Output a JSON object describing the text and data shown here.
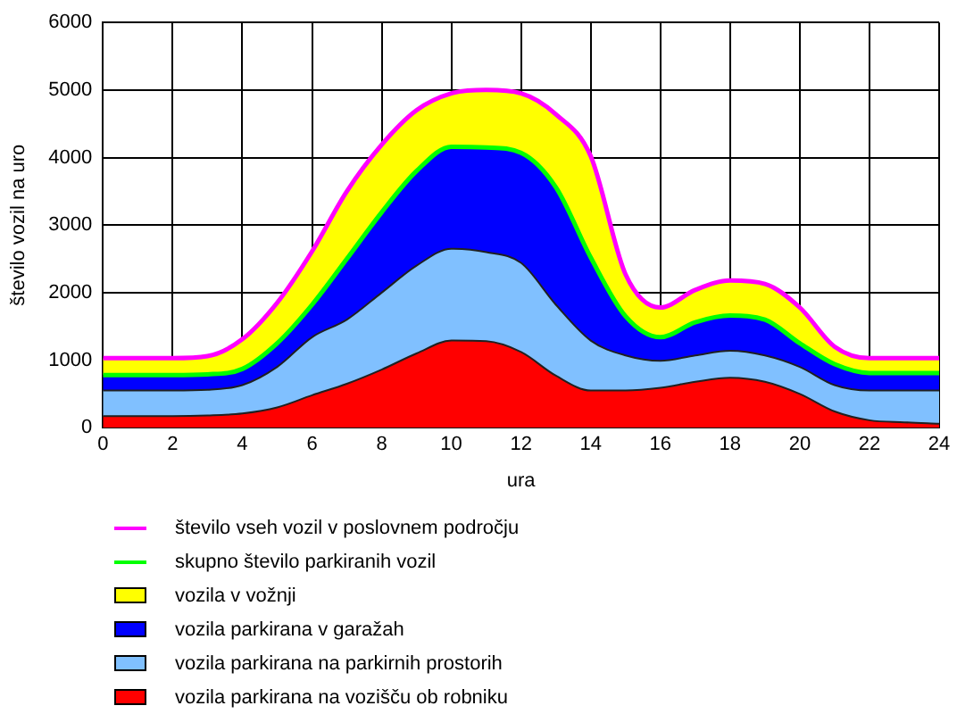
{
  "chart_data": {
    "type": "area",
    "stacked": true,
    "xlabel": "ura",
    "ylabel": "število vozil na uro",
    "x": [
      0,
      1,
      2,
      3,
      4,
      5,
      6,
      7,
      8,
      9,
      10,
      11,
      12,
      13,
      14,
      15,
      16,
      17,
      18,
      19,
      20,
      21,
      22,
      23,
      24
    ],
    "xlim": [
      0,
      24
    ],
    "xticks": [
      0,
      2,
      4,
      6,
      8,
      10,
      12,
      14,
      16,
      18,
      20,
      22,
      24
    ],
    "ylim": [
      0,
      6000
    ],
    "yticks": [
      0,
      1000,
      2000,
      3000,
      4000,
      5000,
      6000
    ],
    "grid": true,
    "legend": "bottom",
    "series": [
      {
        "name": "vozila parkirana na vozišču ob robniku",
        "type": "area",
        "color": "#ff0000",
        "values": [
          170,
          170,
          170,
          180,
          210,
          300,
          480,
          650,
          860,
          1100,
          1290,
          1280,
          1120,
          770,
          550,
          550,
          590,
          680,
          740,
          680,
          500,
          240,
          110,
          80,
          60
        ]
      },
      {
        "name": "vozila parkirana na parkirnih prostorih",
        "type": "area",
        "color": "#80c0ff",
        "values": [
          380,
          380,
          380,
          380,
          420,
          600,
          860,
          950,
          1140,
          1300,
          1360,
          1320,
          1320,
          1050,
          740,
          520,
          400,
          390,
          400,
          390,
          400,
          390,
          440,
          470,
          490
        ]
      },
      {
        "name": "vozila parkirana v garažah",
        "type": "area",
        "color": "#0000ff",
        "values": [
          230,
          230,
          230,
          230,
          240,
          350,
          480,
          900,
          1190,
          1400,
          1510,
          1550,
          1630,
          1740,
          1230,
          580,
          350,
          490,
          520,
          530,
          350,
          310,
          260,
          260,
          260
        ]
      },
      {
        "name": "vozila v vožnji",
        "type": "area",
        "color": "#ffff00",
        "values": [
          250,
          250,
          250,
          270,
          440,
          600,
          790,
          1000,
          1000,
          900,
          790,
          850,
          880,
          1080,
          1500,
          620,
          440,
          480,
          520,
          530,
          530,
          260,
          220,
          220,
          220
        ]
      },
      {
        "name": "skupno število parkiranih vozil",
        "type": "line",
        "color": "#00ff00",
        "values": [
          780,
          780,
          780,
          790,
          870,
          1250,
          1820,
          2500,
          3190,
          3800,
          4160,
          4150,
          4070,
          3560,
          2520,
          1650,
          1340,
          1560,
          1660,
          1600,
          1250,
          940,
          810,
          810,
          810
        ]
      },
      {
        "name": "število vseh vozil v poslovnem področju",
        "type": "line",
        "color": "#ff00ff",
        "values": [
          1030,
          1030,
          1030,
          1060,
          1310,
          1850,
          2610,
          3500,
          4190,
          4700,
          4950,
          5000,
          4950,
          4640,
          4020,
          2270,
          1780,
          2040,
          2180,
          2130,
          1780,
          1200,
          1030,
          1030,
          1030
        ]
      }
    ]
  }
}
